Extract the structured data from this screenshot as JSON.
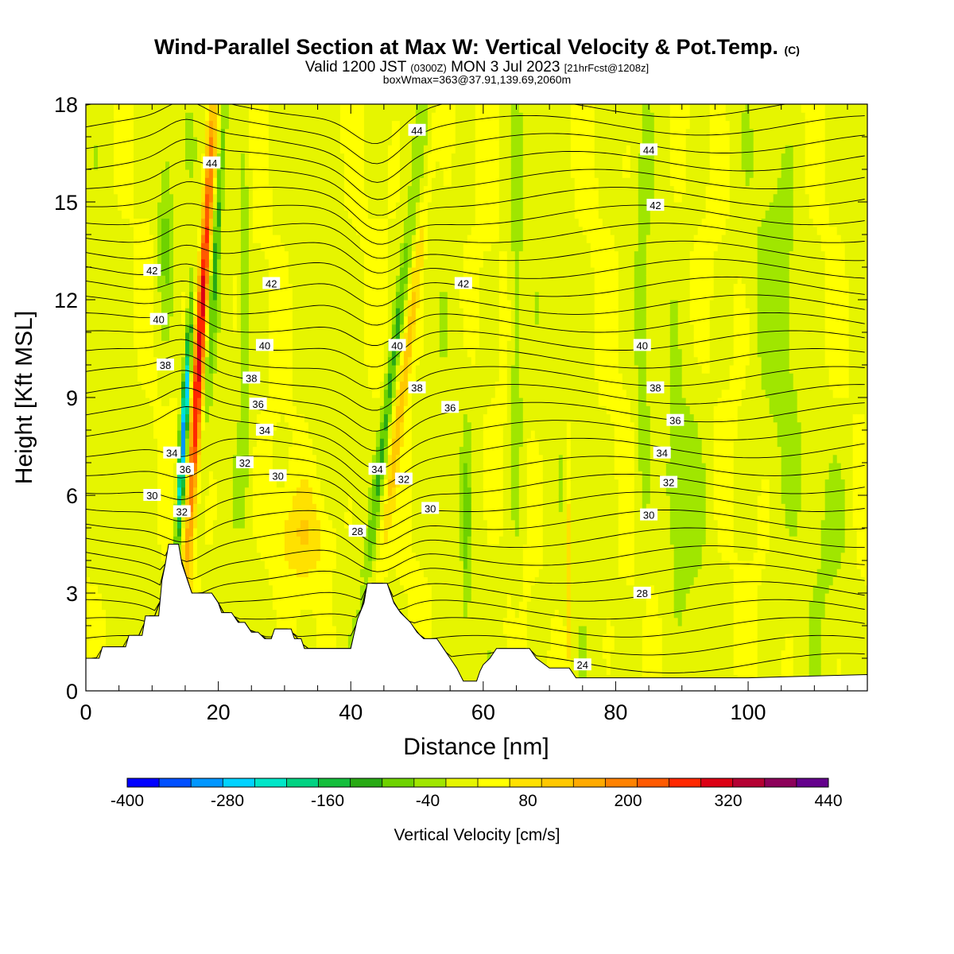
{
  "header": {
    "title": "Wind-Parallel Section at Max W: Vertical Velocity & Pot.Temp.",
    "copyright_mark": "(C)",
    "valid_prefix": "Valid 1200 JST",
    "valid_z": "(0300Z)",
    "valid_date": "MON 3 Jul 2023",
    "valid_fcst": "[21hrFcst@1208z]",
    "box_info": "boxWmax=363@37.91,139.69,2060m"
  },
  "chart_data": {
    "type": "heatmap",
    "xlabel": "Distance [nm]",
    "ylabel": "Height [Kft MSL]",
    "xlim": [
      0,
      118
    ],
    "ylim": [
      0,
      18
    ],
    "x_ticks": [
      0,
      20,
      40,
      60,
      80,
      100
    ],
    "y_ticks": [
      0,
      3,
      6,
      9,
      12,
      15,
      18
    ],
    "colorbar": {
      "label": "Vertical Velocity [cm/s]",
      "min": -400,
      "max": 440,
      "step": 40,
      "tick_labels": [
        "-400",
        "-280",
        "-160",
        "-40",
        "80",
        "200",
        "320",
        "440"
      ],
      "colors": [
        "#0000ff",
        "#0050ff",
        "#0096ff",
        "#00d2ff",
        "#00e6c8",
        "#00d282",
        "#14be3c",
        "#28aa14",
        "#6ed200",
        "#a0e600",
        "#e6f500",
        "#ffff00",
        "#ffe100",
        "#ffc800",
        "#ffaa00",
        "#ff8200",
        "#ff5a00",
        "#ff2800",
        "#dc0014",
        "#b40032",
        "#8c005a",
        "#64008c"
      ]
    },
    "theta_contour_labels": [
      {
        "v": "44",
        "x": 50.0,
        "y": 17.2
      },
      {
        "v": "44",
        "x": 85.0,
        "y": 16.6
      },
      {
        "v": "44",
        "x": 19.0,
        "y": 16.2
      },
      {
        "v": "42",
        "x": 86.0,
        "y": 14.9
      },
      {
        "v": "42",
        "x": 10.0,
        "y": 12.9
      },
      {
        "v": "42",
        "x": 28.0,
        "y": 12.5
      },
      {
        "v": "42",
        "x": 57.0,
        "y": 12.5
      },
      {
        "v": "40",
        "x": 11.0,
        "y": 11.4
      },
      {
        "v": "40",
        "x": 27.0,
        "y": 10.6
      },
      {
        "v": "40",
        "x": 47.0,
        "y": 10.6
      },
      {
        "v": "40",
        "x": 84.0,
        "y": 10.6
      },
      {
        "v": "38",
        "x": 12.0,
        "y": 10.0
      },
      {
        "v": "38",
        "x": 25.0,
        "y": 9.6
      },
      {
        "v": "38",
        "x": 50.0,
        "y": 9.3
      },
      {
        "v": "38",
        "x": 86.0,
        "y": 9.3
      },
      {
        "v": "36",
        "x": 26.0,
        "y": 8.8
      },
      {
        "v": "36",
        "x": 55.0,
        "y": 8.7
      },
      {
        "v": "36",
        "x": 89.0,
        "y": 8.3
      },
      {
        "v": "34",
        "x": 27.0,
        "y": 8.0
      },
      {
        "v": "34",
        "x": 13.0,
        "y": 7.3
      },
      {
        "v": "34",
        "x": 44.0,
        "y": 6.8
      },
      {
        "v": "34",
        "x": 87.0,
        "y": 7.3
      },
      {
        "v": "36",
        "x": 15.0,
        "y": 6.8
      },
      {
        "v": "32",
        "x": 24.0,
        "y": 7.0
      },
      {
        "v": "32",
        "x": 48.0,
        "y": 6.5
      },
      {
        "v": "32",
        "x": 88.0,
        "y": 6.4
      },
      {
        "v": "30",
        "x": 29.0,
        "y": 6.6
      },
      {
        "v": "30",
        "x": 10.0,
        "y": 6.0
      },
      {
        "v": "32",
        "x": 14.5,
        "y": 5.5
      },
      {
        "v": "30",
        "x": 52.0,
        "y": 5.6
      },
      {
        "v": "30",
        "x": 85.0,
        "y": 5.4
      },
      {
        "v": "28",
        "x": 41.0,
        "y": 4.9
      },
      {
        "v": "28",
        "x": 84.0,
        "y": 3.0
      },
      {
        "v": "24",
        "x": 75.0,
        "y": 0.8
      }
    ],
    "terrain_height": [
      [
        0,
        1.0
      ],
      [
        2,
        1.0
      ],
      [
        2.5,
        1.35
      ],
      [
        6,
        1.35
      ],
      [
        6.5,
        1.7
      ],
      [
        8.5,
        1.7
      ],
      [
        9,
        2.3
      ],
      [
        11,
        2.3
      ],
      [
        11.5,
        3.4
      ],
      [
        12,
        3.9
      ],
      [
        12.5,
        4.5
      ],
      [
        14,
        4.5
      ],
      [
        14.5,
        3.9
      ],
      [
        15.5,
        3.3
      ],
      [
        16,
        3.0
      ],
      [
        19,
        3.0
      ],
      [
        20,
        2.7
      ],
      [
        20.5,
        2.4
      ],
      [
        22,
        2.4
      ],
      [
        23,
        2.1
      ],
      [
        24,
        2.1
      ],
      [
        25,
        1.8
      ],
      [
        26,
        1.8
      ],
      [
        27,
        1.6
      ],
      [
        28,
        1.6
      ],
      [
        28.5,
        1.9
      ],
      [
        31,
        1.9
      ],
      [
        31.5,
        1.6
      ],
      [
        32.5,
        1.6
      ],
      [
        33,
        1.3
      ],
      [
        40,
        1.3
      ],
      [
        41,
        2.2
      ],
      [
        42,
        2.7
      ],
      [
        42.5,
        3.3
      ],
      [
        45.5,
        3.3
      ],
      [
        46.5,
        2.7
      ],
      [
        47.5,
        2.4
      ],
      [
        49,
        2.1
      ],
      [
        50,
        1.8
      ],
      [
        51,
        1.6
      ],
      [
        53,
        1.6
      ],
      [
        54,
        1.3
      ],
      [
        55,
        1.0
      ],
      [
        56,
        0.7
      ],
      [
        57,
        0.3
      ],
      [
        59,
        0.3
      ],
      [
        59.5,
        0.6
      ],
      [
        60,
        0.8
      ],
      [
        61,
        1.0
      ],
      [
        62,
        1.3
      ],
      [
        67,
        1.3
      ],
      [
        68,
        1.0
      ],
      [
        70,
        0.7
      ],
      [
        73,
        0.7
      ],
      [
        74,
        0.4
      ],
      [
        80,
        0.4
      ],
      [
        100,
        0.4
      ],
      [
        118,
        0.5
      ]
    ]
  }
}
